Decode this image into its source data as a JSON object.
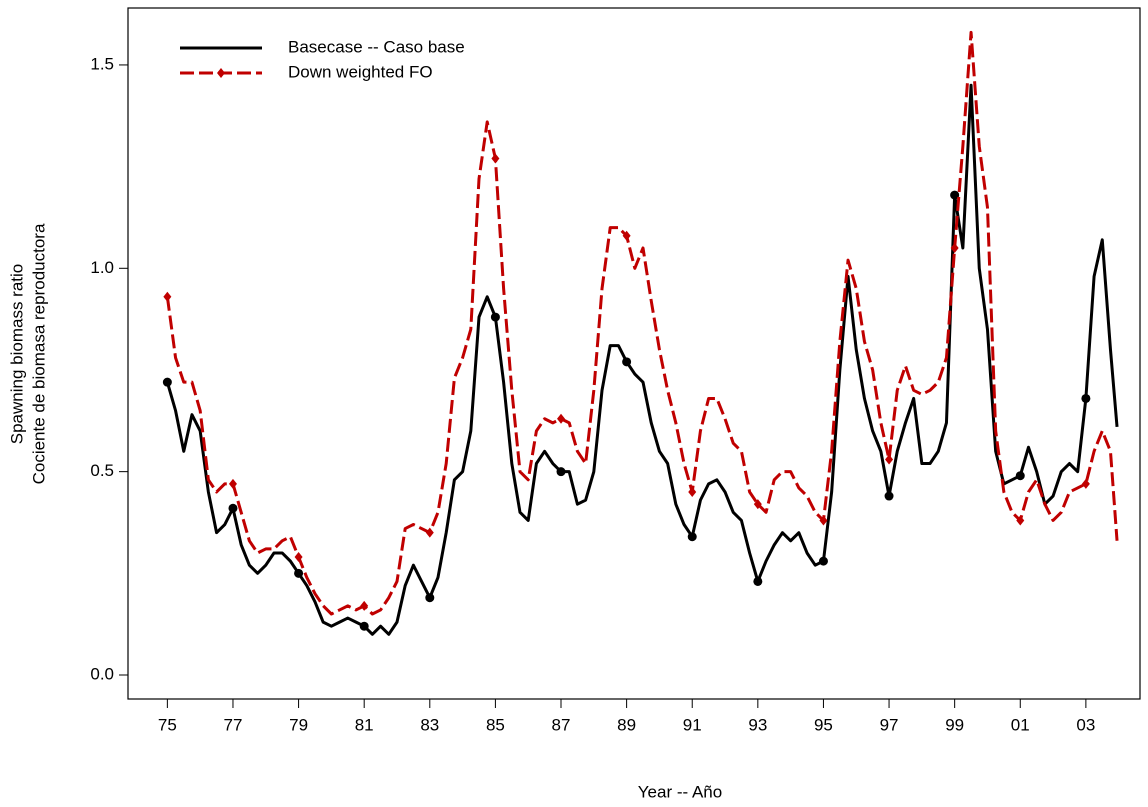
{
  "chart_data": {
    "type": "line",
    "ylabel": [
      "Spawning biomass ratio",
      "Cociente de biomasa reproductora"
    ],
    "xlabel": "Year -- Año",
    "x": [
      1975,
      1975.25,
      1975.5,
      1975.75,
      1976,
      1976.25,
      1976.5,
      1976.75,
      1977,
      1977.25,
      1977.5,
      1977.75,
      1978,
      1978.25,
      1978.5,
      1978.75,
      1979,
      1979.25,
      1979.5,
      1979.75,
      1980,
      1980.25,
      1980.5,
      1980.75,
      1981,
      1981.25,
      1981.5,
      1981.75,
      1982,
      1982.25,
      1982.5,
      1982.75,
      1983,
      1983.25,
      1983.5,
      1983.75,
      1984,
      1984.25,
      1984.5,
      1984.75,
      1985,
      1985.25,
      1985.5,
      1985.75,
      1986,
      1986.25,
      1986.5,
      1986.75,
      1987,
      1987.25,
      1987.5,
      1987.75,
      1988,
      1988.25,
      1988.5,
      1988.75,
      1989,
      1989.25,
      1989.5,
      1989.75,
      1990,
      1990.25,
      1990.5,
      1990.75,
      1991,
      1991.25,
      1991.5,
      1991.75,
      1992,
      1992.25,
      1992.5,
      1992.75,
      1993,
      1993.25,
      1993.5,
      1993.75,
      1994,
      1994.25,
      1994.5,
      1994.75,
      1995,
      1995.25,
      1995.5,
      1995.75,
      1996,
      1996.25,
      1996.5,
      1996.75,
      1997,
      1997.25,
      1997.5,
      1997.75,
      1998,
      1998.25,
      1998.5,
      1998.75,
      1999,
      1999.25,
      1999.5,
      1999.75,
      2000,
      2000.25,
      2000.5,
      2000.75,
      2001,
      2001.25,
      2001.5,
      2001.75,
      2002,
      2002.25,
      2002.5,
      2002.75,
      2003,
      2003.25,
      2003.5,
      2003.75,
      2003.95
    ],
    "series": [
      {
        "name": "Basecase -- Caso base",
        "color": "#000000",
        "dash": "none",
        "marker": "circle",
        "values": [
          0.72,
          0.65,
          0.55,
          0.64,
          0.6,
          0.45,
          0.35,
          0.37,
          0.41,
          0.32,
          0.27,
          0.25,
          0.27,
          0.3,
          0.3,
          0.28,
          0.25,
          0.22,
          0.18,
          0.13,
          0.12,
          0.13,
          0.14,
          0.13,
          0.12,
          0.1,
          0.12,
          0.1,
          0.13,
          0.22,
          0.27,
          0.23,
          0.19,
          0.24,
          0.35,
          0.48,
          0.5,
          0.6,
          0.88,
          0.93,
          0.88,
          0.72,
          0.52,
          0.4,
          0.38,
          0.52,
          0.55,
          0.52,
          0.5,
          0.5,
          0.42,
          0.43,
          0.5,
          0.7,
          0.81,
          0.81,
          0.77,
          0.74,
          0.72,
          0.62,
          0.55,
          0.52,
          0.42,
          0.37,
          0.34,
          0.43,
          0.47,
          0.48,
          0.45,
          0.4,
          0.38,
          0.3,
          0.23,
          0.28,
          0.32,
          0.35,
          0.33,
          0.35,
          0.3,
          0.27,
          0.28,
          0.45,
          0.75,
          0.98,
          0.8,
          0.68,
          0.6,
          0.55,
          0.44,
          0.55,
          0.62,
          0.68,
          0.52,
          0.52,
          0.55,
          0.62,
          1.18,
          1.05,
          1.45,
          1.0,
          0.85,
          0.55,
          0.47,
          0.48,
          0.49,
          0.56,
          0.5,
          0.42,
          0.44,
          0.5,
          0.52,
          0.5,
          0.68,
          0.98,
          1.07,
          0.8,
          0.61
        ]
      },
      {
        "name": "Down weighted FO",
        "color": "#c00000",
        "dash": "14,5",
        "marker": "diamond",
        "values": [
          0.93,
          0.78,
          0.72,
          0.72,
          0.65,
          0.48,
          0.45,
          0.47,
          0.47,
          0.4,
          0.33,
          0.3,
          0.31,
          0.31,
          0.33,
          0.34,
          0.29,
          0.24,
          0.2,
          0.17,
          0.15,
          0.16,
          0.17,
          0.16,
          0.17,
          0.15,
          0.16,
          0.19,
          0.23,
          0.36,
          0.37,
          0.36,
          0.35,
          0.4,
          0.52,
          0.73,
          0.78,
          0.85,
          1.22,
          1.36,
          1.27,
          0.95,
          0.7,
          0.5,
          0.48,
          0.6,
          0.63,
          0.62,
          0.63,
          0.62,
          0.55,
          0.52,
          0.7,
          0.95,
          1.1,
          1.1,
          1.08,
          1.0,
          1.05,
          0.92,
          0.8,
          0.7,
          0.62,
          0.52,
          0.45,
          0.6,
          0.68,
          0.68,
          0.63,
          0.57,
          0.55,
          0.45,
          0.42,
          0.4,
          0.48,
          0.5,
          0.5,
          0.46,
          0.44,
          0.4,
          0.38,
          0.55,
          0.82,
          1.02,
          0.95,
          0.82,
          0.75,
          0.62,
          0.53,
          0.7,
          0.76,
          0.7,
          0.69,
          0.7,
          0.72,
          0.78,
          1.05,
          1.3,
          1.58,
          1.3,
          1.15,
          0.6,
          0.45,
          0.4,
          0.38,
          0.45,
          0.48,
          0.42,
          0.38,
          0.4,
          0.45,
          0.46,
          0.47,
          0.55,
          0.6,
          0.55,
          0.33
        ]
      }
    ],
    "xlim": [
      1973.8,
      2004.65
    ],
    "ylim": [
      -0.059,
      1.64
    ],
    "xticks": [
      {
        "value": 1975,
        "label": "75"
      },
      {
        "value": 1977,
        "label": "77"
      },
      {
        "value": 1979,
        "label": "79"
      },
      {
        "value": 1981,
        "label": "81"
      },
      {
        "value": 1983,
        "label": "83"
      },
      {
        "value": 1985,
        "label": "85"
      },
      {
        "value": 1987,
        "label": "87"
      },
      {
        "value": 1989,
        "label": "89"
      },
      {
        "value": 1991,
        "label": "91"
      },
      {
        "value": 1993,
        "label": "93"
      },
      {
        "value": 1995,
        "label": "95"
      },
      {
        "value": 1997,
        "label": "97"
      },
      {
        "value": 1999,
        "label": "99"
      },
      {
        "value": 2001,
        "label": "01"
      },
      {
        "value": 2003,
        "label": "03"
      }
    ],
    "yticks": [
      {
        "value": 0,
        "label": "0.0"
      },
      {
        "value": 0.5,
        "label": "0.5"
      },
      {
        "value": 1,
        "label": "1.0"
      },
      {
        "value": 1.5,
        "label": "1.5"
      }
    ],
    "legend": "top-left"
  }
}
